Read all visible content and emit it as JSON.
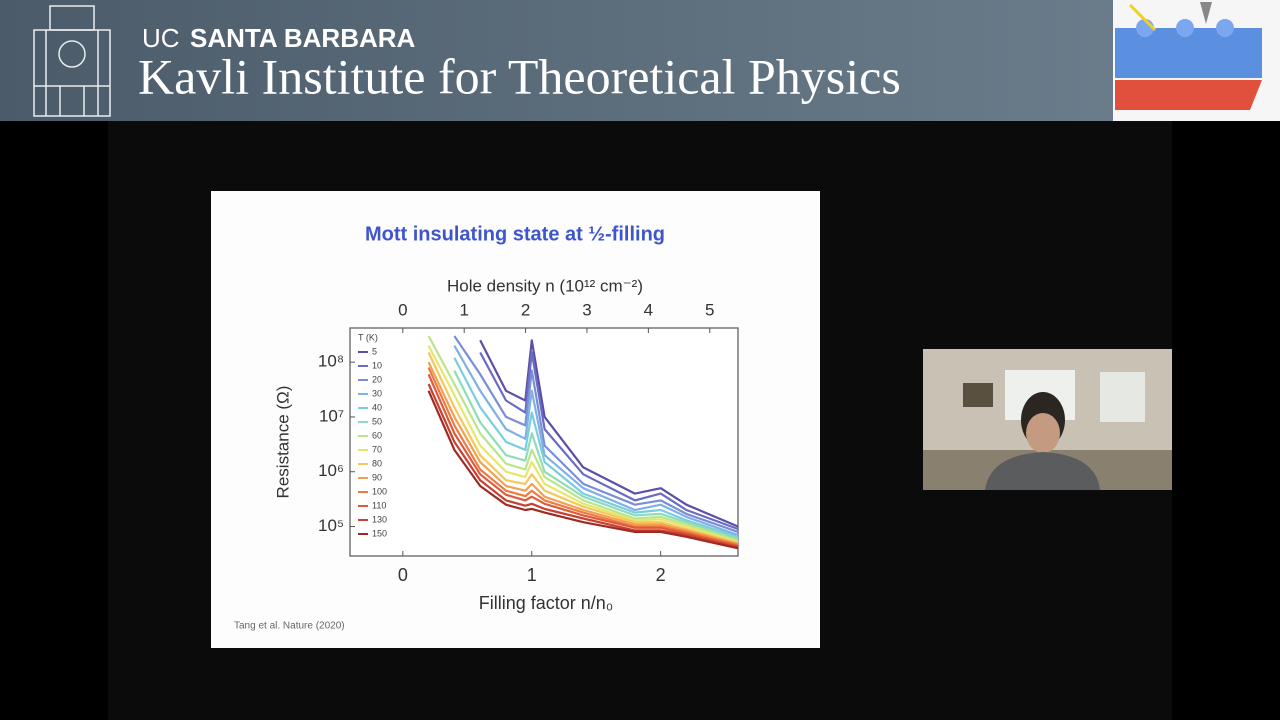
{
  "header": {
    "org_prefix": "UC",
    "org_name": "SANTA BARBARA",
    "institute": "Kavli Institute for Theoretical Physics"
  },
  "slide": {
    "citation": "Tang et al. Nature (2020)"
  },
  "chart_data": {
    "type": "line",
    "title": "Mott insulating state at ½-filling",
    "x_label": "Filling factor n/n₀",
    "x2_label": "Hole density n (10¹² cm⁻²)",
    "y_label": "Resistance (Ω)",
    "legend_title": "T (K)",
    "x": [
      0.2,
      0.4,
      0.6,
      0.8,
      0.95,
      1.0,
      1.1,
      1.4,
      1.8,
      2.0,
      2.2,
      2.6
    ],
    "xlim": [
      -0.41,
      2.6
    ],
    "xticks": [
      0,
      1,
      2
    ],
    "x2lim": [
      -0.86,
      5.46
    ],
    "x2ticks": [
      0,
      1,
      2,
      3,
      4,
      5
    ],
    "ylim": [
      29000,
      420000000
    ],
    "log_y": true,
    "yticks": [
      {
        "value": 100000000,
        "label": "10⁸"
      },
      {
        "value": 10000000,
        "label": "10⁷"
      },
      {
        "value": 1000000,
        "label": "10⁶"
      },
      {
        "value": 100000,
        "label": "10⁵"
      }
    ],
    "series": [
      {
        "name": "5",
        "color": "#5b4fa8",
        "values": [
          null,
          null,
          250000000.0,
          30000000.0,
          20000000.0,
          250000000.0,
          10000000.0,
          1200000.0,
          400000.0,
          500000.0,
          250000.0,
          100000.0
        ]
      },
      {
        "name": "10",
        "color": "#6a6cc4",
        "values": [
          null,
          null,
          150000000.0,
          20000000.0,
          12000000.0,
          150000000.0,
          6000000.0,
          900000.0,
          300000.0,
          400000.0,
          200000.0,
          90000.0
        ]
      },
      {
        "name": "20",
        "color": "#7a8ed8",
        "values": [
          null,
          300000000.0,
          60000000.0,
          10000000.0,
          7000000.0,
          70000000.0,
          3000000.0,
          600000.0,
          250000.0,
          300000.0,
          170000.0,
          80000.0
        ]
      },
      {
        "name": "30",
        "color": "#7fb0e6",
        "values": [
          null,
          200000000.0,
          30000000.0,
          6000000.0,
          4000000.0,
          30000000.0,
          2000000.0,
          500000.0,
          200000.0,
          250000.0,
          150000.0,
          70000.0
        ]
      },
      {
        "name": "40",
        "color": "#79cde0",
        "values": [
          null,
          120000000.0,
          15000000.0,
          3500000.0,
          2500000.0,
          12000000.0,
          1500000.0,
          400000.0,
          180000.0,
          200000.0,
          130000.0,
          65000.0
        ]
      },
      {
        "name": "50",
        "color": "#8fdcb8",
        "values": [
          null,
          70000000.0,
          8000000.0,
          2000000.0,
          1600000.0,
          5000000.0,
          1000000.0,
          350000.0,
          160000.0,
          170000.0,
          120000.0,
          60000.0
        ]
      },
      {
        "name": "60",
        "color": "#b9e58c",
        "values": [
          300000000.0,
          40000000.0,
          5000000.0,
          1400000.0,
          1100000.0,
          2500000.0,
          800000.0,
          300000.0,
          140000.0,
          150000.0,
          110000.0,
          55000.0
        ]
      },
      {
        "name": "70",
        "color": "#e6e66a",
        "values": [
          200000000.0,
          25000000.0,
          3000000.0,
          1000000.0,
          800000.0,
          1500000.0,
          600000.0,
          260000.0,
          130000.0,
          135000.0,
          100000.0,
          52000.0
        ]
      },
      {
        "name": "80",
        "color": "#f5c85a",
        "values": [
          150000000.0,
          15000000.0,
          2000000.0,
          700000.0,
          600000.0,
          900000.0,
          450000.0,
          230000.0,
          120000.0,
          120000.0,
          90000.0,
          50000.0
        ]
      },
      {
        "name": "90",
        "color": "#f4a050",
        "values": [
          100000000.0,
          10000000.0,
          1500000.0,
          550000.0,
          450000.0,
          600000.0,
          350000.0,
          200000.0,
          110000.0,
          110000.0,
          85000.0,
          48000.0
        ]
      },
      {
        "name": "100",
        "color": "#ee7a44",
        "values": [
          80000000.0,
          7000000.0,
          1100000.0,
          450000.0,
          360000.0,
          450000.0,
          300000.0,
          180000.0,
          100000.0,
          100000.0,
          80000.0,
          46000.0
        ]
      },
      {
        "name": "110",
        "color": "#e05a3a",
        "values": [
          60000000.0,
          5000000.0,
          900000.0,
          380000.0,
          300000.0,
          350000.0,
          260000.0,
          160000.0,
          95000.0,
          95000.0,
          75000.0,
          44000.0
        ]
      },
      {
        "name": "130",
        "color": "#c84030",
        "values": [
          40000000.0,
          3500000.0,
          700000.0,
          300000.0,
          240000.0,
          260000.0,
          210000.0,
          140000.0,
          85000.0,
          85000.0,
          70000.0,
          42000.0
        ]
      },
      {
        "name": "150",
        "color": "#a02a22",
        "values": [
          30000000.0,
          2500000.0,
          550000.0,
          250000.0,
          200000.0,
          210000.0,
          180000.0,
          120000.0,
          80000.0,
          80000.0,
          65000.0,
          40000.0
        ]
      }
    ]
  }
}
